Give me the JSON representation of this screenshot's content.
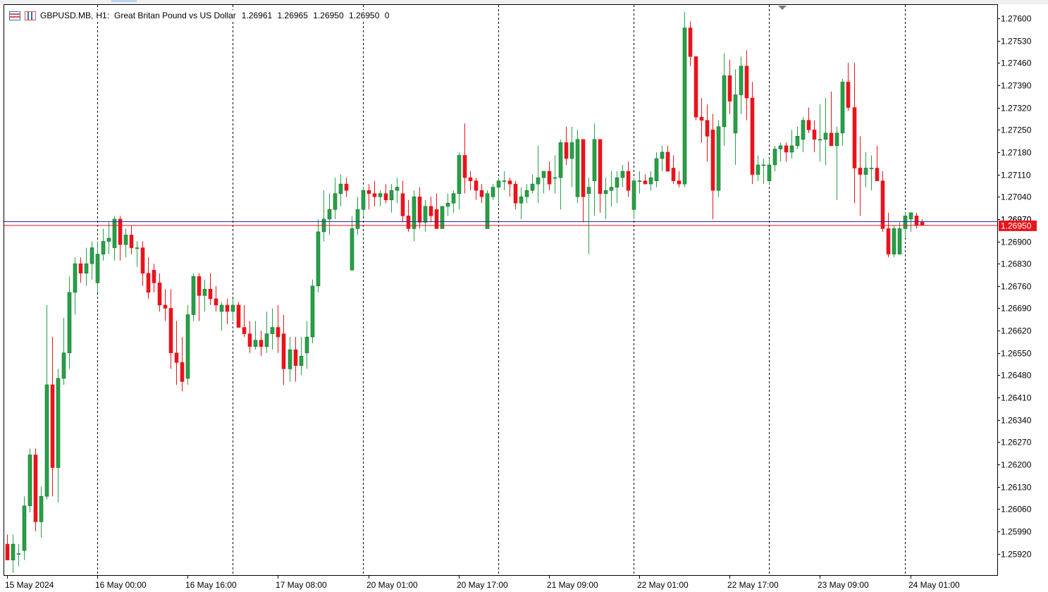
{
  "header": {
    "symbol": "GBPUSD.MB,",
    "timeframe": "H1:",
    "description": "Great Britan Pound vs US Dollar",
    "open": "1.26961",
    "high": "1.26965",
    "low": "1.26950",
    "close": "1.26950",
    "volume": "0"
  },
  "colors": {
    "bull": "#26a146",
    "bear": "#e8141c",
    "current_price_label_bg": "#e8141c",
    "bid_line": "#e8141c",
    "ask_line": "#2a2aaa",
    "grid": "#000000"
  },
  "chart_data": {
    "type": "candlestick",
    "symbol": "GBPUSD.MB",
    "timeframe": "H1",
    "ylim": [
      1.2588,
      1.2764
    ],
    "y_ticks": [
      "1.27600",
      "1.27530",
      "1.27460",
      "1.27390",
      "1.27320",
      "1.27250",
      "1.27180",
      "1.27110",
      "1.27040",
      "1.26970",
      "1.26900",
      "1.26830",
      "1.26760",
      "1.26690",
      "1.26620",
      "1.26550",
      "1.26480",
      "1.26410",
      "1.26340",
      "1.26270",
      "1.26200",
      "1.26130",
      "1.26060",
      "1.25990",
      "1.25920"
    ],
    "x_labels": [
      "15 May 2024",
      "16 May 00:00",
      "16 May 16:00",
      "17 May 08:00",
      "20 May 01:00",
      "20 May 17:00",
      "21 May 09:00",
      "22 May 01:00",
      "22 May 17:00",
      "23 May 09:00",
      "24 May 01:00"
    ],
    "x_label_bar_index": [
      0,
      16,
      32,
      48,
      64,
      80,
      96,
      112,
      128,
      144,
      160
    ],
    "vertical_grid_bar_index": [
      16,
      40,
      63,
      87,
      111,
      135,
      159
    ],
    "current_price": "1.26950",
    "ask_price": 1.26962,
    "hidden_tick_label_behind_price": "1.26970",
    "candles": [
      [
        1.2595,
        1.2598,
        1.259,
        1.259
      ],
      [
        1.259,
        1.2598,
        1.2586,
        1.2595
      ],
      [
        1.2592,
        1.2595,
        1.2588,
        1.2592
      ],
      [
        1.2593,
        1.261,
        1.259,
        1.2607
      ],
      [
        1.2607,
        1.2625,
        1.2605,
        1.2623
      ],
      [
        1.2623,
        1.2625,
        1.2599,
        1.2602
      ],
      [
        1.2602,
        1.2613,
        1.2597,
        1.261
      ],
      [
        1.261,
        1.267,
        1.2609,
        1.2645
      ],
      [
        1.2645,
        1.266,
        1.261,
        1.2619
      ],
      [
        1.2619,
        1.265,
        1.2608,
        1.2647
      ],
      [
        1.2647,
        1.2666,
        1.2645,
        1.2655
      ],
      [
        1.2655,
        1.2679,
        1.265,
        1.2674
      ],
      [
        1.2674,
        1.2685,
        1.2667,
        1.2683
      ],
      [
        1.2683,
        1.2685,
        1.2677,
        1.268
      ],
      [
        1.268,
        1.2688,
        1.2676,
        1.2683
      ],
      [
        1.2683,
        1.269,
        1.2678,
        1.2688
      ],
      [
        1.2677,
        1.269,
        1.2674,
        1.2686
      ],
      [
        1.2686,
        1.2694,
        1.2684,
        1.269
      ],
      [
        1.269,
        1.2696,
        1.2686,
        1.2691
      ],
      [
        1.2688,
        1.2698,
        1.2684,
        1.2697
      ],
      [
        1.2697,
        1.2698,
        1.2684,
        1.2689
      ],
      [
        1.2689,
        1.2694,
        1.2685,
        1.2692
      ],
      [
        1.2692,
        1.2695,
        1.2686,
        1.2688
      ],
      [
        1.2688,
        1.269,
        1.2682,
        1.2688
      ],
      [
        1.2688,
        1.269,
        1.2676,
        1.268
      ],
      [
        1.268,
        1.2685,
        1.2672,
        1.2674
      ],
      [
        1.2681,
        1.2683,
        1.2674,
        1.2677
      ],
      [
        1.2677,
        1.268,
        1.2668,
        1.267
      ],
      [
        1.267,
        1.2675,
        1.2665,
        1.2669
      ],
      [
        1.2669,
        1.2675,
        1.265,
        1.2655
      ],
      [
        1.2655,
        1.2665,
        1.2645,
        1.2652
      ],
      [
        1.2652,
        1.266,
        1.2643,
        1.2646
      ],
      [
        1.2647,
        1.267,
        1.2645,
        1.2667
      ],
      [
        1.2667,
        1.268,
        1.2665,
        1.2679
      ],
      [
        1.2679,
        1.268,
        1.2665,
        1.2673
      ],
      [
        1.2673,
        1.2678,
        1.2668,
        1.2675
      ],
      [
        1.2675,
        1.268,
        1.267,
        1.2672
      ],
      [
        1.2672,
        1.2676,
        1.2668,
        1.267
      ],
      [
        1.2668,
        1.2671,
        1.2662,
        1.267
      ],
      [
        1.267,
        1.2672,
        1.2664,
        1.2668
      ],
      [
        1.2668,
        1.2672,
        1.2665,
        1.267
      ],
      [
        1.267,
        1.2671,
        1.2663,
        1.2663
      ],
      [
        1.2663,
        1.267,
        1.266,
        1.2661
      ],
      [
        1.2661,
        1.2665,
        1.2655,
        1.2657
      ],
      [
        1.2657,
        1.2665,
        1.2656,
        1.2659
      ],
      [
        1.2659,
        1.2662,
        1.2654,
        1.2657
      ],
      [
        1.2657,
        1.2668,
        1.2655,
        1.2661
      ],
      [
        1.2661,
        1.2669,
        1.2656,
        1.2663
      ],
      [
        1.2663,
        1.267,
        1.2655,
        1.266
      ],
      [
        1.2661,
        1.2667,
        1.2645,
        1.265
      ],
      [
        1.265,
        1.266,
        1.2646,
        1.2656
      ],
      [
        1.2656,
        1.266,
        1.2646,
        1.2651
      ],
      [
        1.2651,
        1.266,
        1.2648,
        1.2654
      ],
      [
        1.2655,
        1.2665,
        1.265,
        1.266
      ],
      [
        1.266,
        1.2678,
        1.2658,
        1.2676
      ],
      [
        1.2676,
        1.2697,
        1.2674,
        1.2693
      ],
      [
        1.2693,
        1.2706,
        1.269,
        1.2697
      ],
      [
        1.2697,
        1.2705,
        1.2692,
        1.27
      ],
      [
        1.27,
        1.271,
        1.2697,
        1.2705
      ],
      [
        1.2705,
        1.2711,
        1.2701,
        1.2708
      ],
      [
        1.2708,
        1.271,
        1.2704,
        1.2706
      ],
      [
        1.2681,
        1.2698,
        1.2681,
        1.2694
      ],
      [
        1.2694,
        1.2704,
        1.2692,
        1.27
      ],
      [
        1.27,
        1.2707,
        1.2698,
        1.2706
      ],
      [
        1.2706,
        1.2708,
        1.27,
        1.2705
      ],
      [
        1.2705,
        1.2709,
        1.2701,
        1.2704
      ],
      [
        1.2704,
        1.2706,
        1.2701,
        1.2705
      ],
      [
        1.2705,
        1.2708,
        1.2702,
        1.2703
      ],
      [
        1.2703,
        1.2708,
        1.2699,
        1.2706
      ],
      [
        1.2706,
        1.271,
        1.2702,
        1.2707
      ],
      [
        1.2705,
        1.2709,
        1.2696,
        1.2698
      ],
      [
        1.2698,
        1.2703,
        1.2693,
        1.2694
      ],
      [
        1.2694,
        1.2706,
        1.269,
        1.2704
      ],
      [
        1.2704,
        1.2707,
        1.2694,
        1.2696
      ],
      [
        1.2696,
        1.2703,
        1.2693,
        1.2701
      ],
      [
        1.2701,
        1.2704,
        1.2696,
        1.2698
      ],
      [
        1.27,
        1.2705,
        1.2694,
        1.2694
      ],
      [
        1.2694,
        1.2701,
        1.2695,
        1.2701
      ],
      [
        1.2701,
        1.2705,
        1.2698,
        1.2702
      ],
      [
        1.2702,
        1.2706,
        1.2699,
        1.2705
      ],
      [
        1.2705,
        1.2718,
        1.27,
        1.2717
      ],
      [
        1.2717,
        1.2727,
        1.2705,
        1.271
      ],
      [
        1.271,
        1.2712,
        1.2706,
        1.2709
      ],
      [
        1.2709,
        1.271,
        1.2703,
        1.2706
      ],
      [
        1.2706,
        1.2708,
        1.2702,
        1.2704
      ],
      [
        1.2694,
        1.2706,
        1.2694,
        1.2705
      ],
      [
        1.2704,
        1.2708,
        1.2703,
        1.2707
      ],
      [
        1.2707,
        1.271,
        1.2702,
        1.2709
      ],
      [
        1.2709,
        1.2712,
        1.2706,
        1.2709
      ],
      [
        1.2709,
        1.271,
        1.2704,
        1.2708
      ],
      [
        1.2708,
        1.2709,
        1.27,
        1.2702
      ],
      [
        1.2702,
        1.2707,
        1.2697,
        1.2704
      ],
      [
        1.2704,
        1.2708,
        1.2702,
        1.2706
      ],
      [
        1.2706,
        1.2711,
        1.2705,
        1.2708
      ],
      [
        1.2708,
        1.272,
        1.2702,
        1.271
      ],
      [
        1.271,
        1.2712,
        1.2705,
        1.2712
      ],
      [
        1.2712,
        1.2715,
        1.2706,
        1.2708
      ],
      [
        1.271,
        1.2717,
        1.2705,
        1.271
      ],
      [
        1.271,
        1.2722,
        1.27,
        1.2721
      ],
      [
        1.2721,
        1.2726,
        1.2714,
        1.2716
      ],
      [
        1.2716,
        1.2726,
        1.2707,
        1.2721
      ],
      [
        1.2704,
        1.2725,
        1.2702,
        1.2722
      ],
      [
        1.2722,
        1.2722,
        1.2696,
        1.2704
      ],
      [
        1.2705,
        1.271,
        1.2686,
        1.2707
      ],
      [
        1.2709,
        1.2727,
        1.2698,
        1.2722
      ],
      [
        1.2722,
        1.2722,
        1.2699,
        1.2705
      ],
      [
        1.2705,
        1.271,
        1.2697,
        1.2706
      ],
      [
        1.2706,
        1.2712,
        1.2701,
        1.2707
      ],
      [
        1.2707,
        1.2712,
        1.2702,
        1.271
      ],
      [
        1.271,
        1.2714,
        1.2707,
        1.2712
      ],
      [
        1.2712,
        1.2715,
        1.2704,
        1.2706
      ],
      [
        1.27,
        1.271,
        1.2697,
        1.2709
      ],
      [
        1.2709,
        1.2712,
        1.2705,
        1.2709
      ],
      [
        1.2709,
        1.2711,
        1.2708,
        1.2708
      ],
      [
        1.2708,
        1.2712,
        1.2706,
        1.271
      ],
      [
        1.2709,
        1.2718,
        1.2707,
        1.2716
      ],
      [
        1.2716,
        1.272,
        1.2712,
        1.2718
      ],
      [
        1.2718,
        1.272,
        1.2712,
        1.2712
      ],
      [
        1.2713,
        1.2717,
        1.2708,
        1.2709
      ],
      [
        1.2709,
        1.2712,
        1.2707,
        1.2708
      ],
      [
        1.2708,
        1.2762,
        1.2707,
        1.2757
      ],
      [
        1.2757,
        1.2759,
        1.2745,
        1.2748
      ],
      [
        1.2748,
        1.2748,
        1.2728,
        1.2729
      ],
      [
        1.2729,
        1.2735,
        1.2721,
        1.2728
      ],
      [
        1.2728,
        1.2733,
        1.2715,
        1.2723
      ],
      [
        1.2725,
        1.273,
        1.2697,
        1.2706
      ],
      [
        1.2706,
        1.2728,
        1.2704,
        1.2726
      ],
      [
        1.2726,
        1.2749,
        1.272,
        1.2742
      ],
      [
        1.2742,
        1.2747,
        1.273,
        1.2734
      ],
      [
        1.2724,
        1.2744,
        1.2714,
        1.2736
      ],
      [
        1.2736,
        1.2748,
        1.273,
        1.2745
      ],
      [
        1.2745,
        1.275,
        1.2728,
        1.2735
      ],
      [
        1.2735,
        1.274,
        1.2708,
        1.2711
      ],
      [
        1.2711,
        1.2717,
        1.2709,
        1.2714
      ],
      [
        1.2714,
        1.2716,
        1.2708,
        1.2714
      ],
      [
        1.2709,
        1.2716,
        1.2708,
        1.2714
      ],
      [
        1.2714,
        1.272,
        1.2712,
        1.2719
      ],
      [
        1.2719,
        1.2721,
        1.2715,
        1.272
      ],
      [
        1.272,
        1.2721,
        1.2715,
        1.2718
      ],
      [
        1.2718,
        1.2725,
        1.2716,
        1.272
      ],
      [
        1.272,
        1.2726,
        1.2719,
        1.2723
      ],
      [
        1.2722,
        1.2729,
        1.2718,
        1.2728
      ],
      [
        1.2728,
        1.2732,
        1.2724,
        1.2725
      ],
      [
        1.2725,
        1.2728,
        1.2718,
        1.2722
      ],
      [
        1.2722,
        1.2733,
        1.2715,
        1.2722
      ],
      [
        1.2722,
        1.2735,
        1.2714,
        1.2724
      ],
      [
        1.2724,
        1.2737,
        1.272,
        1.272
      ],
      [
        1.272,
        1.2726,
        1.2703,
        1.2724
      ],
      [
        1.2724,
        1.2741,
        1.272,
        1.274
      ],
      [
        1.274,
        1.2746,
        1.2731,
        1.2732
      ],
      [
        1.2732,
        1.2746,
        1.2702,
        1.2713
      ],
      [
        1.2713,
        1.2723,
        1.2698,
        1.2711
      ],
      [
        1.2711,
        1.2718,
        1.2707,
        1.2713
      ],
      [
        1.2713,
        1.2717,
        1.2706,
        1.2713
      ],
      [
        1.2713,
        1.272,
        1.271,
        1.2709
      ],
      [
        1.2709,
        1.2712,
        1.2693,
        1.2694
      ],
      [
        1.2694,
        1.2699,
        1.2685,
        1.2686
      ],
      [
        1.2686,
        1.2695,
        1.2685,
        1.2694
      ],
      [
        1.2686,
        1.2696,
        1.2686,
        1.2694
      ],
      [
        1.2694,
        1.2699,
        1.2691,
        1.2698
      ],
      [
        1.2697,
        1.2699,
        1.2693,
        1.2699
      ],
      [
        1.2698,
        1.2699,
        1.2694,
        1.2695
      ],
      [
        1.2696,
        1.2697,
        1.2695,
        1.2695
      ]
    ]
  }
}
